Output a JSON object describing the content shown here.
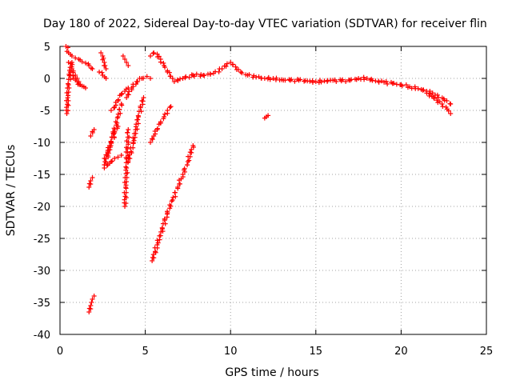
{
  "chart_data": {
    "type": "scatter",
    "title": "Day 180 of 2022, Sidereal Day-to-day VTEC variation (SDTVAR) for receiver flin",
    "xlabel": "GPS time / hours",
    "ylabel": "SDTVAR / TECUs",
    "xlim": [
      0,
      25
    ],
    "ylim": [
      -40,
      5
    ],
    "xticks": [
      "0",
      "5",
      "10",
      "15",
      "20",
      "25"
    ],
    "yticks": [
      "5",
      "0",
      "-5",
      "-10",
      "-15",
      "-20",
      "-25",
      "-30",
      "-35",
      "-40"
    ],
    "grid": true,
    "marker": "plus",
    "color": "#ff0000",
    "series": [
      {
        "name": "SDTVAR",
        "segments": [
          {
            "x": [
              0.35,
              0.5,
              0.7,
              0.9,
              1.1,
              1.3,
              1.5,
              1.7,
              1.9
            ],
            "y": [
              5,
              4,
              3.5,
              3.2,
              3,
              2.6,
              2.4,
              2,
              1.5
            ]
          },
          {
            "x": [
              0.4,
              0.45,
              0.5,
              0.6,
              0.7
            ],
            "y": [
              -5.5,
              -3,
              -1,
              1,
              2.5
            ]
          },
          {
            "x": [
              0.5,
              0.7,
              0.9,
              1.1,
              1.3,
              1.5
            ],
            "y": [
              2.5,
              1.5,
              0.5,
              -0.5,
              -1.2,
              -1.5
            ]
          },
          {
            "x": [
              0.6,
              0.8,
              1.0,
              1.2,
              1.4
            ],
            "y": [
              0.5,
              0,
              -0.5,
              -1,
              -1.3
            ]
          },
          {
            "x": [
              2.4,
              2.5,
              2.6,
              2.7
            ],
            "y": [
              4,
              3.5,
              2.5,
              1.5
            ]
          },
          {
            "x": [
              2.3,
              2.5,
              2.7
            ],
            "y": [
              1,
              0.5,
              0
            ]
          },
          {
            "x": [
              3.7,
              3.8,
              3.9,
              4.0
            ],
            "y": [
              3.5,
              3,
              2.5,
              2
            ]
          },
          {
            "x": [
              2.6,
              2.8,
              3.0,
              3.2,
              3.4,
              3.6
            ],
            "y": [
              -13.5,
              -12,
              -10,
              -8,
              -6,
              -4
            ]
          },
          {
            "x": [
              2.6,
              2.8,
              3.0,
              3.2,
              3.4
            ],
            "y": [
              -12.5,
              -11.5,
              -10,
              -8.5,
              -7.5
            ]
          },
          {
            "x": [
              2.6,
              2.8,
              3.0,
              3.2,
              3.4,
              3.6
            ],
            "y": [
              -14,
              -13.5,
              -13,
              -12.5,
              -12.3,
              -12
            ]
          },
          {
            "x": [
              3.0,
              3.2,
              3.4,
              3.6,
              3.8,
              4.0
            ],
            "y": [
              -5,
              -4.5,
              -3.5,
              -2.5,
              -2,
              -1.5
            ]
          },
          {
            "x": [
              3.8,
              3.85,
              3.9,
              3.95,
              4.0
            ],
            "y": [
              -20,
              -17,
              -14,
              -11,
              -8
            ]
          },
          {
            "x": [
              3.9,
              4.2,
              4.5,
              4.8,
              5.1,
              5.3
            ],
            "y": [
              -3,
              -1.5,
              -0.5,
              0,
              0.3,
              0
            ]
          },
          {
            "x": [
              4.0,
              4.3,
              4.6,
              4.9
            ],
            "y": [
              -13,
              -10,
              -6,
              -3
            ]
          },
          {
            "x": [
              1.7,
              1.8,
              1.9
            ],
            "y": [
              -17,
              -16,
              -15.5
            ]
          },
          {
            "x": [
              1.8,
              1.9,
              2.0
            ],
            "y": [
              -9,
              -8.3,
              -8
            ]
          },
          {
            "x": [
              1.7,
              1.8,
              1.85,
              1.9,
              2.0
            ],
            "y": [
              -36.5,
              -35.5,
              -35,
              -34.5,
              -34
            ]
          },
          {
            "x": [
              5.3,
              5.5,
              5.7,
              5.9,
              6.1,
              6.3,
              6.5
            ],
            "y": [
              -10,
              -9,
              -8,
              -7,
              -6,
              -5,
              -4.4
            ]
          },
          {
            "x": [
              5.4,
              5.7,
              6.0,
              6.3,
              6.6,
              6.9,
              7.2,
              7.5,
              7.8
            ],
            "y": [
              -28.5,
              -26,
              -23.5,
              -21,
              -19,
              -17,
              -15,
              -13,
              -10.5
            ]
          },
          {
            "x": [
              5.3,
              5.5,
              5.7,
              5.9,
              6.1,
              6.3,
              6.6
            ],
            "y": [
              3.5,
              4,
              3.8,
              3,
              2,
              1,
              0
            ]
          },
          {
            "x": [
              6.7,
              7.2,
              7.8,
              8.4,
              9.0,
              9.5,
              9.8,
              10.0,
              10.3,
              10.6,
              11.0,
              11.5,
              12.0,
              12.5,
              13.0,
              13.5,
              14.0,
              14.5,
              15.0,
              15.5,
              16.0,
              16.5,
              17.0,
              17.5,
              18.0,
              18.5,
              19.0,
              19.5,
              20.0,
              20.5,
              21.0,
              21.5,
              22.0,
              22.5,
              22.9
            ],
            "y": [
              -0.5,
              0,
              0.5,
              0.5,
              0.8,
              1.5,
              2.3,
              2.5,
              1.8,
              1,
              0.5,
              0.2,
              0,
              0,
              -0.2,
              -0.3,
              -0.3,
              -0.4,
              -0.5,
              -0.4,
              -0.3,
              -0.4,
              -0.3,
              0,
              0,
              -0.4,
              -0.6,
              -0.8,
              -1,
              -1.3,
              -1.6,
              -2,
              -2.6,
              -3.2,
              -4
            ]
          },
          {
            "x": [
              21.5,
              21.8,
              22.1,
              22.4,
              22.7,
              22.9
            ],
            "y": [
              -2.3,
              -2.8,
              -3.4,
              -4,
              -4.8,
              -5.5
            ]
          },
          {
            "x": [
              12.0,
              12.1,
              12.2
            ],
            "y": [
              -6.2,
              -6,
              -5.8
            ]
          }
        ]
      }
    ]
  }
}
